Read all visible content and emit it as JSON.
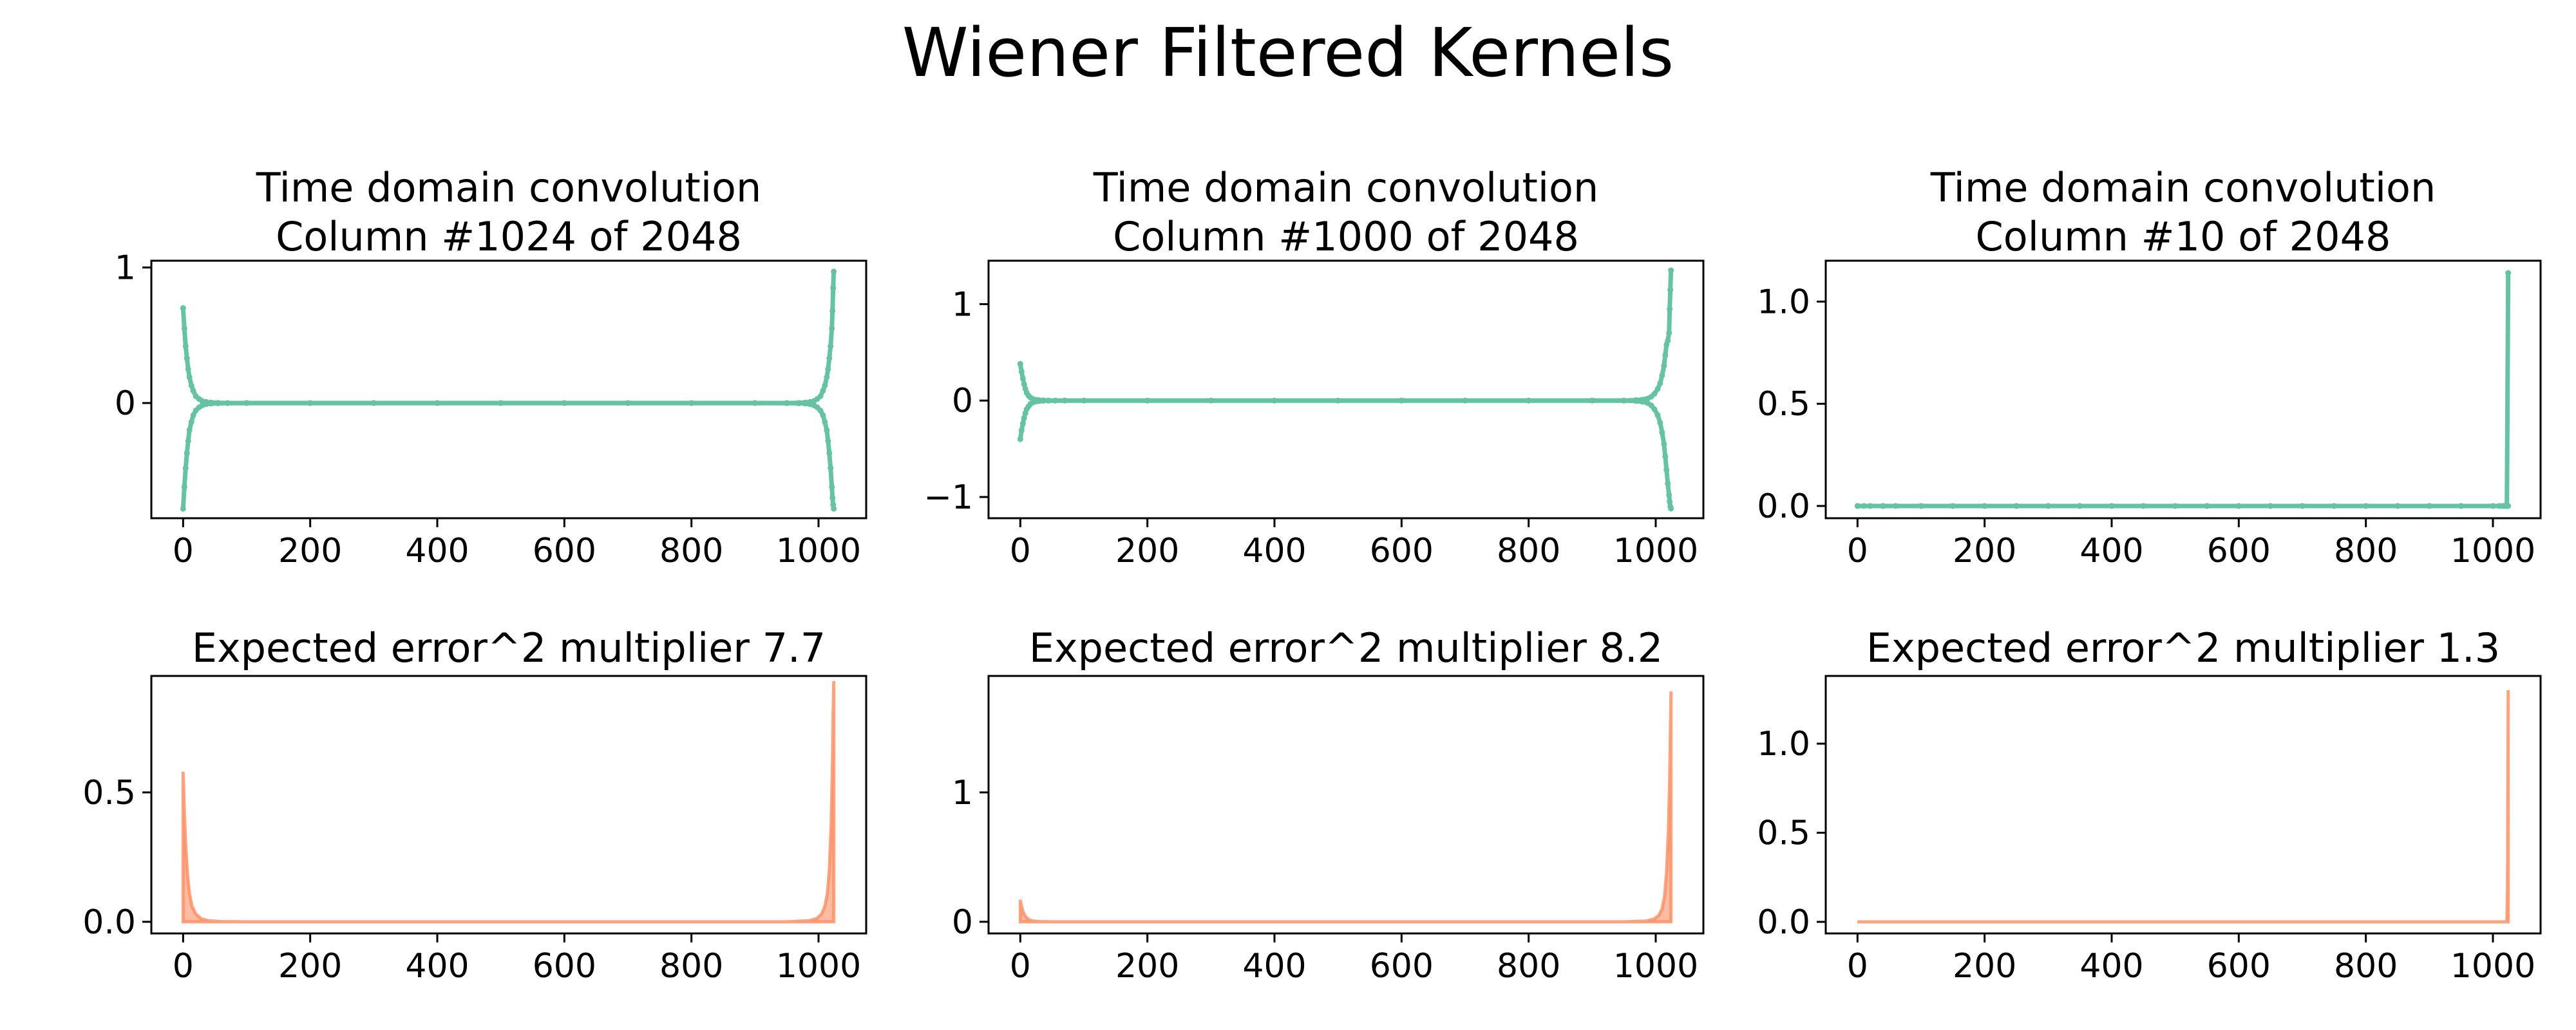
{
  "figure": {
    "title": "Wiener Filtered Kernels"
  },
  "colors": {
    "scatter": "#66c2a5",
    "area": "#fc8d62",
    "axis": "#000000"
  },
  "chart_data": [
    {
      "type": "scatter",
      "title_lines": [
        "Time domain convolution",
        "Column #1024 of 2048"
      ],
      "xlim": [
        -50,
        1075
      ],
      "ylim": [
        -0.85,
        1.05
      ],
      "xticks": [
        0,
        200,
        400,
        600,
        800,
        1000
      ],
      "xtick_labels": [
        "0",
        "200",
        "400",
        "600",
        "800",
        "1000"
      ],
      "yticks": [
        0,
        1
      ],
      "ytick_labels": [
        "0",
        "1"
      ],
      "x": [
        0,
        2,
        4,
        6,
        8,
        10,
        13,
        16,
        20,
        25,
        30,
        36,
        44,
        55,
        70,
        100,
        200,
        300,
        400,
        500,
        600,
        700,
        800,
        900,
        950,
        969,
        979,
        987,
        993,
        998,
        1003,
        1007,
        1010,
        1013,
        1015,
        1017,
        1019,
        1021,
        1022,
        1023,
        1024
      ],
      "series": [
        {
          "values": [
            0.7,
            0.55,
            0.42,
            0.33,
            0.25,
            0.19,
            0.13,
            0.09,
            0.05,
            0.03,
            0.015,
            0.008,
            0.003,
            0.001,
            0,
            0,
            0,
            0,
            0,
            0,
            0,
            0,
            0,
            0,
            0,
            0.001,
            0.003,
            0.008,
            0.015,
            0.03,
            0.05,
            0.09,
            0.13,
            0.19,
            0.25,
            0.33,
            0.42,
            0.55,
            0.68,
            0.85,
            0.97
          ]
        },
        {
          "values": [
            -0.78,
            -0.62,
            -0.48,
            -0.37,
            -0.28,
            -0.2,
            -0.14,
            -0.09,
            -0.055,
            -0.032,
            -0.018,
            -0.009,
            -0.004,
            -0.002,
            -0.001,
            0,
            0,
            0,
            0,
            0,
            0,
            0,
            0,
            0,
            -0.001,
            -0.002,
            -0.004,
            -0.009,
            -0.018,
            -0.032,
            -0.055,
            -0.09,
            -0.14,
            -0.2,
            -0.28,
            -0.37,
            -0.48,
            -0.62,
            -0.7,
            -0.75,
            -0.78
          ]
        }
      ]
    },
    {
      "type": "scatter",
      "title_lines": [
        "Time domain convolution",
        "Column #1000 of 2048"
      ],
      "xlim": [
        -50,
        1075
      ],
      "ylim": [
        -1.22,
        1.45
      ],
      "xticks": [
        0,
        200,
        400,
        600,
        800,
        1000
      ],
      "xtick_labels": [
        "0",
        "200",
        "400",
        "600",
        "800",
        "1000"
      ],
      "yticks": [
        -1,
        0,
        1
      ],
      "ytick_labels": [
        "−1",
        "0",
        "1"
      ],
      "x": [
        0,
        2,
        4,
        6,
        8,
        10,
        13,
        16,
        20,
        25,
        30,
        36,
        44,
        55,
        70,
        100,
        200,
        300,
        400,
        500,
        600,
        700,
        800,
        900,
        950,
        969,
        979,
        987,
        993,
        998,
        1003,
        1007,
        1010,
        1013,
        1015,
        1017,
        1019,
        1021,
        1022,
        1023,
        1024
      ],
      "series": [
        {
          "values": [
            0.38,
            0.3,
            0.23,
            0.17,
            0.12,
            0.08,
            0.05,
            0.03,
            0.015,
            0.008,
            0.004,
            0.002,
            0.001,
            0,
            0,
            0,
            0,
            0,
            0,
            0,
            0,
            0,
            0,
            0,
            0,
            0.005,
            0.01,
            0.02,
            0.04,
            0.07,
            0.12,
            0.18,
            0.26,
            0.36,
            0.47,
            0.58,
            0.62,
            0.7,
            0.95,
            1.15,
            1.35
          ]
        },
        {
          "values": [
            -0.4,
            -0.31,
            -0.24,
            -0.18,
            -0.13,
            -0.09,
            -0.06,
            -0.035,
            -0.02,
            -0.01,
            -0.005,
            -0.002,
            -0.001,
            0,
            0,
            0,
            0,
            0,
            0,
            0,
            0,
            0,
            0,
            0,
            0,
            -0.005,
            -0.012,
            -0.025,
            -0.05,
            -0.09,
            -0.15,
            -0.23,
            -0.33,
            -0.45,
            -0.58,
            -0.72,
            -0.86,
            -0.98,
            -1.05,
            -1.1,
            -1.12
          ]
        }
      ]
    },
    {
      "type": "scatter",
      "title_lines": [
        "Time domain convolution",
        "Column #10 of 2048"
      ],
      "xlim": [
        -50,
        1075
      ],
      "ylim": [
        -0.06,
        1.2
      ],
      "xticks": [
        0,
        200,
        400,
        600,
        800,
        1000
      ],
      "xtick_labels": [
        "0",
        "200",
        "400",
        "600",
        "800",
        "1000"
      ],
      "yticks": [
        0,
        0.5,
        1
      ],
      "ytick_labels": [
        "0.0",
        "0.5",
        "1.0"
      ],
      "x": [
        0,
        10,
        20,
        40,
        60,
        100,
        150,
        200,
        250,
        300,
        350,
        400,
        450,
        500,
        550,
        600,
        650,
        700,
        750,
        800,
        850,
        900,
        950,
        1000,
        1010,
        1015,
        1018,
        1020,
        1022,
        1024
      ],
      "series": [
        {
          "values": [
            0,
            0,
            0,
            0,
            0,
            0,
            0,
            0,
            0,
            0,
            0,
            0,
            0,
            0,
            0,
            0,
            0,
            0,
            0,
            0,
            0,
            0,
            0,
            0,
            0,
            0,
            0,
            0,
            0,
            0
          ]
        },
        {
          "values": [
            0,
            0,
            0,
            0,
            0,
            0,
            0,
            0,
            0,
            0,
            0,
            0,
            0,
            0,
            0,
            0,
            0,
            0,
            0,
            0,
            0,
            0,
            0,
            0,
            0,
            0,
            0,
            0,
            0,
            1.14
          ]
        }
      ]
    },
    {
      "type": "area",
      "title": "Expected error^2 multiplier 7.7",
      "xlim": [
        -50,
        1075
      ],
      "ylim": [
        -0.045,
        0.95
      ],
      "xticks": [
        0,
        200,
        400,
        600,
        800,
        1000
      ],
      "xtick_labels": [
        "0",
        "200",
        "400",
        "600",
        "800",
        "1000"
      ],
      "yticks": [
        0,
        0.5
      ],
      "ytick_labels": [
        "0.0",
        "0.5"
      ],
      "x": [
        0,
        2,
        4,
        7,
        10,
        14,
        20,
        28,
        40,
        60,
        100,
        500,
        950,
        985,
        997,
        1005,
        1010,
        1014,
        1017,
        1020,
        1022,
        1023,
        1024
      ],
      "values": [
        0.58,
        0.42,
        0.3,
        0.18,
        0.11,
        0.06,
        0.03,
        0.012,
        0.004,
        0.001,
        0,
        0,
        0,
        0.004,
        0.012,
        0.03,
        0.06,
        0.11,
        0.2,
        0.38,
        0.62,
        0.8,
        0.93
      ]
    },
    {
      "type": "area",
      "title": "Expected error^2 multiplier 8.2",
      "xlim": [
        -50,
        1075
      ],
      "ylim": [
        -0.09,
        1.9
      ],
      "xticks": [
        0,
        200,
        400,
        600,
        800,
        1000
      ],
      "xtick_labels": [
        "0",
        "200",
        "400",
        "600",
        "800",
        "1000"
      ],
      "yticks": [
        0,
        1
      ],
      "ytick_labels": [
        "0",
        "1"
      ],
      "x": [
        0,
        2,
        4,
        7,
        10,
        14,
        20,
        30,
        50,
        100,
        500,
        950,
        985,
        997,
        1005,
        1010,
        1014,
        1017,
        1020,
        1022,
        1023,
        1024
      ],
      "values": [
        0.17,
        0.12,
        0.08,
        0.05,
        0.03,
        0.015,
        0.006,
        0.002,
        0,
        0,
        0,
        0,
        0.006,
        0.02,
        0.05,
        0.1,
        0.2,
        0.38,
        0.7,
        1.1,
        1.45,
        1.78
      ]
    },
    {
      "type": "area",
      "title": "Expected error^2 multiplier 1.3",
      "xlim": [
        -50,
        1075
      ],
      "ylim": [
        -0.065,
        1.38
      ],
      "xticks": [
        0,
        200,
        400,
        600,
        800,
        1000
      ],
      "xtick_labels": [
        "0",
        "200",
        "400",
        "600",
        "800",
        "1000"
      ],
      "yticks": [
        0,
        0.5,
        1
      ],
      "ytick_labels": [
        "0.0",
        "0.5",
        "1.0"
      ],
      "x": [
        0,
        500,
        1020,
        1022,
        1023,
        1024
      ],
      "values": [
        0,
        0,
        0,
        0,
        0.2,
        1.3
      ]
    }
  ]
}
